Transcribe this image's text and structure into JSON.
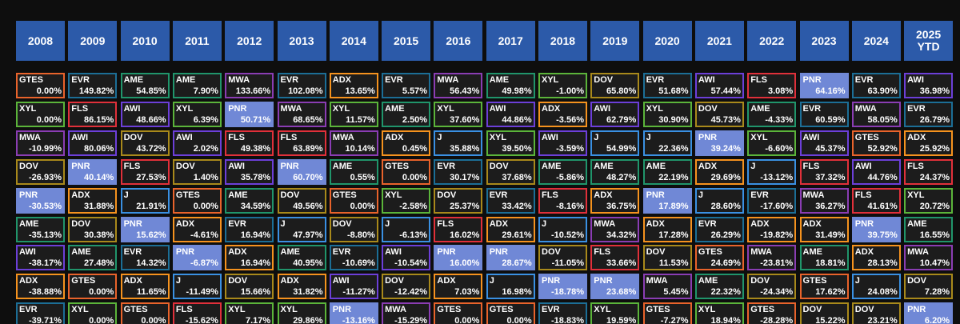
{
  "header": {
    "years": [
      "2008",
      "2009",
      "2010",
      "2011",
      "2012",
      "2013",
      "2014",
      "2015",
      "2016",
      "2017",
      "2018",
      "2019",
      "2020",
      "2021",
      "2022",
      "2023",
      "2024",
      "2025 YTD"
    ]
  },
  "colors": {
    "GTES": "#e8632b",
    "EVR": "#1c6e96",
    "AME": "#20956b",
    "MWA": "#8a3db3",
    "ADX": "#f5921e",
    "XYL": "#5bb43a",
    "DOV": "#a8891b",
    "AWI": "#6c3fd8",
    "FLS": "#e0303a",
    "PNR": "#7088d6",
    "J": "#3a90e2"
  },
  "filled": [
    "PNR"
  ],
  "table": {
    "columns": [
      [
        [
          "GTES",
          "0.00%"
        ],
        [
          "XYL",
          "0.00%"
        ],
        [
          "MWA",
          "-10.99%"
        ],
        [
          "DOV",
          "-26.93%"
        ],
        [
          "PNR",
          "-30.53%"
        ],
        [
          "AME",
          "-35.13%"
        ],
        [
          "AWI",
          "-38.17%"
        ],
        [
          "ADX",
          "-38.88%"
        ],
        [
          "EVR",
          "-39.71%"
        ]
      ],
      [
        [
          "EVR",
          "149.82%"
        ],
        [
          "FLS",
          "86.15%"
        ],
        [
          "AWI",
          "80.06%"
        ],
        [
          "PNR",
          "40.14%"
        ],
        [
          "ADX",
          "31.88%"
        ],
        [
          "DOV",
          "30.38%"
        ],
        [
          "AME",
          "27.48%"
        ],
        [
          "GTES",
          "0.00%"
        ],
        [
          "XYL",
          "0.00%"
        ]
      ],
      [
        [
          "AME",
          "54.85%"
        ],
        [
          "AWI",
          "48.66%"
        ],
        [
          "DOV",
          "43.72%"
        ],
        [
          "FLS",
          "27.53%"
        ],
        [
          "J",
          "21.91%"
        ],
        [
          "PNR",
          "15.62%"
        ],
        [
          "EVR",
          "14.32%"
        ],
        [
          "ADX",
          "11.65%"
        ],
        [
          "GTES",
          "0.00%"
        ]
      ],
      [
        [
          "AME",
          "7.90%"
        ],
        [
          "XYL",
          "6.39%"
        ],
        [
          "AWI",
          "2.02%"
        ],
        [
          "DOV",
          "1.40%"
        ],
        [
          "GTES",
          "0.00%"
        ],
        [
          "ADX",
          "-4.61%"
        ],
        [
          "PNR",
          "-6.87%"
        ],
        [
          "J",
          "-11.49%"
        ],
        [
          "FLS",
          "-15.62%"
        ]
      ],
      [
        [
          "MWA",
          "133.66%"
        ],
        [
          "PNR",
          "50.71%"
        ],
        [
          "FLS",
          "49.38%"
        ],
        [
          "AWI",
          "35.78%"
        ],
        [
          "AME",
          "34.59%"
        ],
        [
          "EVR",
          "16.94%"
        ],
        [
          "ADX",
          "16.94%"
        ],
        [
          "DOV",
          "15.66%"
        ],
        [
          "XYL",
          "7.17%"
        ]
      ],
      [
        [
          "EVR",
          "102.08%"
        ],
        [
          "MWA",
          "68.65%"
        ],
        [
          "FLS",
          "63.89%"
        ],
        [
          "PNR",
          "60.70%"
        ],
        [
          "DOV",
          "49.56%"
        ],
        [
          "J",
          "47.97%"
        ],
        [
          "AME",
          "40.95%"
        ],
        [
          "ADX",
          "31.82%"
        ],
        [
          "XYL",
          "29.86%"
        ]
      ],
      [
        [
          "ADX",
          "13.65%"
        ],
        [
          "XYL",
          "11.57%"
        ],
        [
          "MWA",
          "10.14%"
        ],
        [
          "AME",
          "0.55%"
        ],
        [
          "GTES",
          "0.00%"
        ],
        [
          "DOV",
          "-8.80%"
        ],
        [
          "EVR",
          "-10.69%"
        ],
        [
          "AWI",
          "-11.27%"
        ],
        [
          "PNR",
          "-13.16%"
        ]
      ],
      [
        [
          "EVR",
          "5.57%"
        ],
        [
          "AME",
          "2.50%"
        ],
        [
          "ADX",
          "0.45%"
        ],
        [
          "GTES",
          "0.00%"
        ],
        [
          "XYL",
          "-2.58%"
        ],
        [
          "J",
          "-6.13%"
        ],
        [
          "AWI",
          "-10.54%"
        ],
        [
          "DOV",
          "-12.42%"
        ],
        [
          "MWA",
          "-15.29%"
        ]
      ],
      [
        [
          "MWA",
          "56.43%"
        ],
        [
          "XYL",
          "37.60%"
        ],
        [
          "J",
          "35.88%"
        ],
        [
          "EVR",
          "30.17%"
        ],
        [
          "DOV",
          "25.37%"
        ],
        [
          "FLS",
          "16.02%"
        ],
        [
          "PNR",
          "16.00%"
        ],
        [
          "ADX",
          "7.03%"
        ],
        [
          "GTES",
          "0.00%"
        ]
      ],
      [
        [
          "AME",
          "49.98%"
        ],
        [
          "AWI",
          "44.86%"
        ],
        [
          "XYL",
          "39.50%"
        ],
        [
          "DOV",
          "37.68%"
        ],
        [
          "EVR",
          "33.42%"
        ],
        [
          "ADX",
          "29.61%"
        ],
        [
          "PNR",
          "28.67%"
        ],
        [
          "J",
          "16.98%"
        ],
        [
          "GTES",
          "0.00%"
        ]
      ],
      [
        [
          "XYL",
          "-1.00%"
        ],
        [
          "ADX",
          "-3.56%"
        ],
        [
          "AWI",
          "-3.59%"
        ],
        [
          "AME",
          "-5.86%"
        ],
        [
          "FLS",
          "-8.16%"
        ],
        [
          "J",
          "-10.52%"
        ],
        [
          "DOV",
          "-11.05%"
        ],
        [
          "PNR",
          "-18.78%"
        ],
        [
          "EVR",
          "-18.83%"
        ]
      ],
      [
        [
          "DOV",
          "65.80%"
        ],
        [
          "AWI",
          "62.79%"
        ],
        [
          "J",
          "54.99%"
        ],
        [
          "AME",
          "48.27%"
        ],
        [
          "ADX",
          "36.75%"
        ],
        [
          "MWA",
          "34.32%"
        ],
        [
          "FLS",
          "33.66%"
        ],
        [
          "PNR",
          "23.68%"
        ],
        [
          "XYL",
          "19.59%"
        ]
      ],
      [
        [
          "EVR",
          "51.68%"
        ],
        [
          "XYL",
          "30.90%"
        ],
        [
          "J",
          "22.36%"
        ],
        [
          "AME",
          "22.19%"
        ],
        [
          "PNR",
          "17.89%"
        ],
        [
          "ADX",
          "17.28%"
        ],
        [
          "DOV",
          "11.53%"
        ],
        [
          "MWA",
          "5.45%"
        ],
        [
          "GTES",
          "-7.27%"
        ]
      ],
      [
        [
          "AWI",
          "57.44%"
        ],
        [
          "DOV",
          "45.73%"
        ],
        [
          "PNR",
          "39.24%"
        ],
        [
          "ADX",
          "29.69%"
        ],
        [
          "J",
          "28.60%"
        ],
        [
          "EVR",
          "26.29%"
        ],
        [
          "GTES",
          "24.69%"
        ],
        [
          "AME",
          "22.32%"
        ],
        [
          "XYL",
          "18.94%"
        ]
      ],
      [
        [
          "FLS",
          "3.08%"
        ],
        [
          "AME",
          "-4.33%"
        ],
        [
          "XYL",
          "-6.60%"
        ],
        [
          "J",
          "-13.12%"
        ],
        [
          "EVR",
          "-17.60%"
        ],
        [
          "ADX",
          "-19.82%"
        ],
        [
          "MWA",
          "-23.81%"
        ],
        [
          "DOV",
          "-24.34%"
        ],
        [
          "GTES",
          "-28.28%"
        ]
      ],
      [
        [
          "PNR",
          "64.16%"
        ],
        [
          "EVR",
          "60.59%"
        ],
        [
          "AWI",
          "45.37%"
        ],
        [
          "FLS",
          "37.32%"
        ],
        [
          "MWA",
          "36.27%"
        ],
        [
          "ADX",
          "31.49%"
        ],
        [
          "AME",
          "18.81%"
        ],
        [
          "GTES",
          "17.62%"
        ],
        [
          "DOV",
          "15.22%"
        ]
      ],
      [
        [
          "EVR",
          "63.90%"
        ],
        [
          "MWA",
          "58.05%"
        ],
        [
          "GTES",
          "52.92%"
        ],
        [
          "AWI",
          "44.76%"
        ],
        [
          "FLS",
          "41.61%"
        ],
        [
          "PNR",
          "39.75%"
        ],
        [
          "ADX",
          "28.13%"
        ],
        [
          "J",
          "24.08%"
        ],
        [
          "DOV",
          "23.21%"
        ]
      ],
      [
        [
          "AWI",
          "36.98%"
        ],
        [
          "EVR",
          "26.79%"
        ],
        [
          "ADX",
          "25.92%"
        ],
        [
          "FLS",
          "24.37%"
        ],
        [
          "XYL",
          "20.72%"
        ],
        [
          "AME",
          "16.55%"
        ],
        [
          "MWA",
          "10.47%"
        ],
        [
          "DOV",
          "7.28%"
        ],
        [
          "PNR",
          "6.20%"
        ]
      ]
    ]
  }
}
